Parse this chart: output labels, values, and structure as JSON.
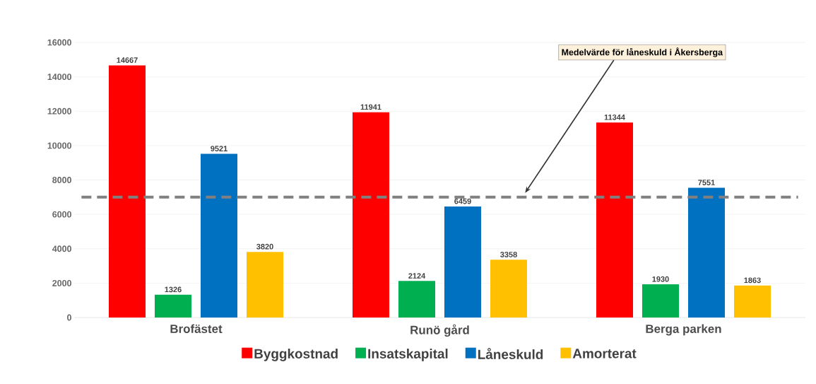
{
  "chart_data": {
    "type": "bar",
    "categories": [
      "Brofästet",
      "Runö gård",
      "Berga parken"
    ],
    "series": [
      {
        "name": "Byggkostnad",
        "color": "#ff0000",
        "values": [
          14667,
          11941,
          11344
        ]
      },
      {
        "name": "Insatskapital",
        "color": "#00b050",
        "values": [
          1326,
          2124,
          1930
        ]
      },
      {
        "name": "Låneskuld",
        "color": "#0070c0",
        "values": [
          9521,
          6459,
          7551
        ]
      },
      {
        "name": "Amorterat",
        "color": "#ffc000",
        "values": [
          3820,
          3358,
          1863
        ]
      }
    ],
    "ylim": [
      0,
      16000
    ],
    "yticks": [
      0,
      2000,
      4000,
      6000,
      8000,
      10000,
      12000,
      14000,
      16000
    ],
    "ref_lines": [
      {
        "axis": "y",
        "value": 7000,
        "color": "#808080",
        "line_style": "dashed"
      }
    ],
    "annotations": [
      "Medelvärde för låneskuld i Åkersberga"
    ],
    "data_labels": true,
    "grid": "y",
    "legend": "bottom"
  }
}
